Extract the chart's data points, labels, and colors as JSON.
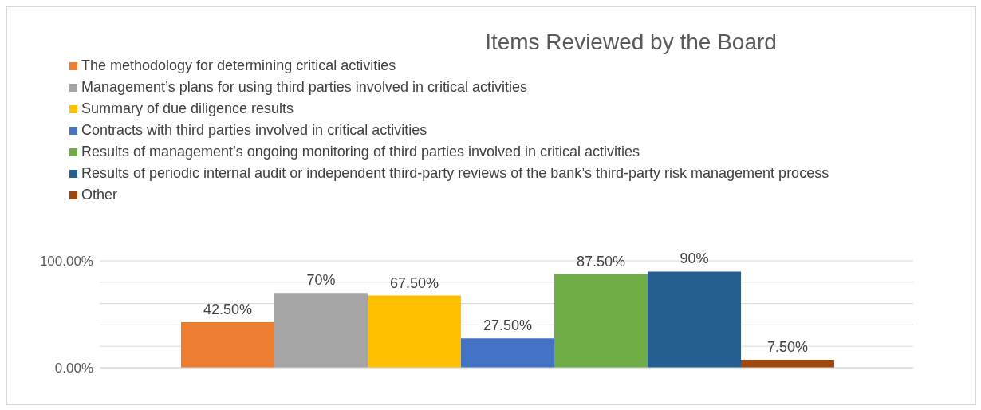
{
  "chart_data": {
    "type": "bar",
    "title": "Items Reviewed by the Board",
    "categories": [
      null
    ],
    "series": [
      {
        "name": "The methodology for determining critical activities",
        "color": "#ed7d31",
        "values": [
          42.5
        ],
        "value_labels": [
          "42.50%"
        ]
      },
      {
        "name": "Management’s plans for using third parties involved in critical activities",
        "color": "#a5a5a5",
        "values": [
          70
        ],
        "value_labels": [
          "70%"
        ]
      },
      {
        "name": "Summary of due diligence results",
        "color": "#ffc000",
        "values": [
          67.5
        ],
        "value_labels": [
          "67.50%"
        ]
      },
      {
        "name": "Contracts with third parties involved in critical activities",
        "color": "#4472c4",
        "values": [
          27.5
        ],
        "value_labels": [
          "27.50%"
        ]
      },
      {
        "name": "Results of management’s ongoing monitoring of third parties involved in critical activities",
        "color": "#70ad47",
        "values": [
          87.5
        ],
        "value_labels": [
          "87.50%"
        ]
      },
      {
        "name": "Results of periodic internal audit or independent third-party reviews of the bank’s third-party risk management process",
        "color": "#255e91",
        "values": [
          90
        ],
        "value_labels": [
          "90%"
        ]
      },
      {
        "name": "Other",
        "color": "#9e480e",
        "values": [
          7.5
        ],
        "value_labels": [
          "7.50%"
        ]
      }
    ],
    "ylim": [
      0,
      100
    ],
    "yticks": [
      {
        "value": 0,
        "label": "0.00%"
      },
      {
        "value": 20,
        "label": null
      },
      {
        "value": 40,
        "label": null
      },
      {
        "value": 60,
        "label": null
      },
      {
        "value": 80,
        "label": null
      },
      {
        "value": 100,
        "label": "100.00%"
      }
    ],
    "grid": "y",
    "legend": "top left",
    "tick_labels": "y"
  }
}
